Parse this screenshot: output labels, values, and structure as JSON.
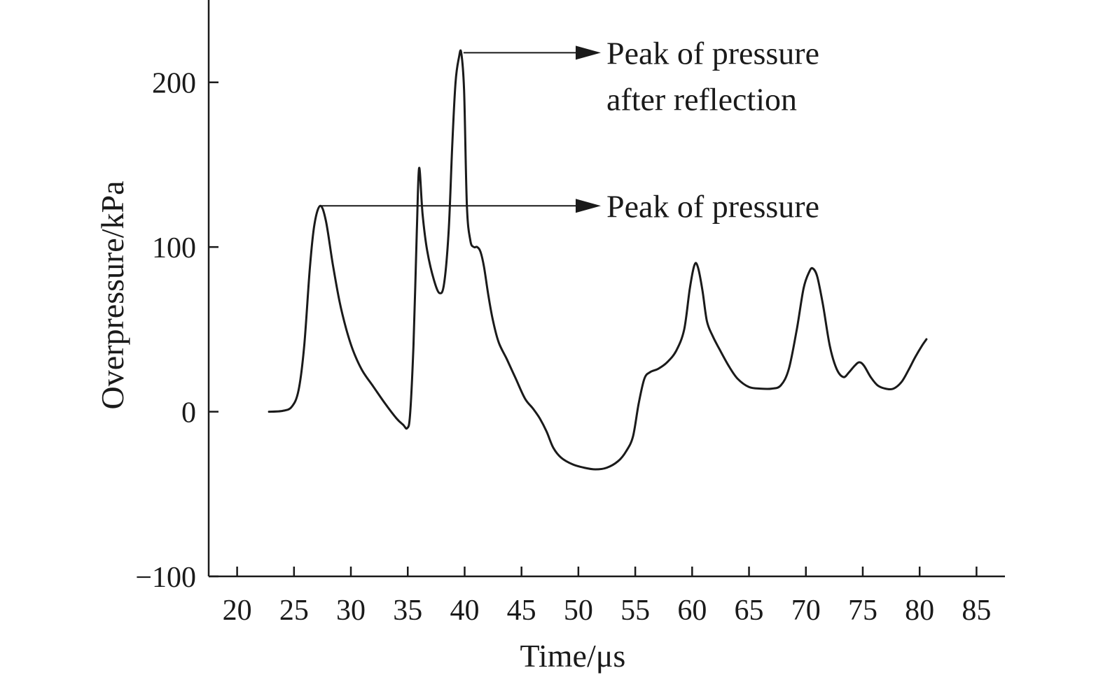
{
  "chart_data": {
    "type": "line",
    "title": "",
    "xlabel": "Time/μs",
    "ylabel": "Overpressure/kPa",
    "xlim": [
      17.5,
      87.5
    ],
    "ylim": [
      -100,
      250
    ],
    "x_ticks": [
      20,
      25,
      30,
      35,
      40,
      45,
      50,
      55,
      60,
      65,
      70,
      75,
      80,
      85
    ],
    "y_ticks": [
      -100,
      0,
      100,
      200
    ],
    "x_tick_labels": [
      "20",
      "25",
      "30",
      "35",
      "40",
      "45",
      "50",
      "55",
      "60",
      "65",
      "70",
      "75",
      "80",
      "85"
    ],
    "y_tick_labels": [
      "−100",
      "0",
      "100",
      "200"
    ],
    "grid": false,
    "series": [
      {
        "x": [
          22.8,
          24.0,
          24.8,
          25.4,
          25.9,
          26.4,
          26.8,
          27.3,
          27.8,
          28.4,
          29.0,
          29.6,
          30.2,
          31.0,
          32.0,
          33.0,
          34.0,
          34.6,
          34.95,
          35.2,
          35.5,
          35.8,
          36.0,
          36.3,
          36.7,
          37.3,
          37.8,
          38.2,
          38.6,
          38.9,
          39.2,
          39.5,
          39.7,
          39.95,
          40.2,
          40.5,
          40.8,
          41.1,
          41.4,
          41.7,
          42.1,
          42.5,
          43.0,
          43.7,
          44.5,
          45.3,
          46.0,
          46.6,
          47.2,
          47.8,
          48.5,
          49.5,
          50.5,
          51.5,
          52.5,
          53.5,
          54.2,
          54.8,
          55.3,
          55.8,
          56.3,
          57.0,
          57.8,
          58.6,
          59.3,
          59.8,
          60.2,
          60.5,
          60.9,
          61.3,
          61.8,
          62.4,
          63.2,
          64.0,
          65.0,
          66.0,
          67.0,
          67.8,
          68.5,
          69.2,
          69.8,
          70.3,
          70.6,
          71.0,
          71.5,
          72.1,
          72.7,
          73.3,
          73.8,
          74.3,
          74.7,
          75.1,
          75.7,
          76.3,
          77.0,
          77.7,
          78.4,
          79.0,
          79.6,
          80.2,
          80.6
        ],
        "y": [
          0,
          0.5,
          3,
          13,
          40,
          88,
          114,
          125,
          116,
          90,
          67,
          50,
          37,
          25,
          15,
          5,
          -4,
          -8,
          -10,
          -2,
          40,
          110,
          148,
          120,
          98,
          80,
          72,
          78,
          110,
          160,
          200,
          215,
          218,
          195,
          125,
          104,
          100,
          100,
          97,
          88,
          70,
          55,
          42,
          32,
          20,
          8,
          2,
          -4,
          -12,
          -22,
          -28,
          -32,
          -34,
          -35,
          -34,
          -30,
          -24,
          -15,
          5,
          20,
          24,
          26,
          30,
          37,
          50,
          75,
          89,
          88,
          74,
          55,
          46,
          38,
          28,
          20,
          15,
          14,
          14,
          16,
          26,
          50,
          75,
          85,
          87,
          82,
          65,
          40,
          26,
          21,
          24,
          28,
          30,
          28,
          21,
          16,
          14,
          14,
          18,
          25,
          33,
          40,
          44
        ]
      }
    ],
    "annotations": [
      {
        "lines": [
          "Peak of pressure",
          "after reflection"
        ],
        "x": 39.9,
        "y": 218
      },
      {
        "lines": [
          "Peak of pressure"
        ],
        "x": 27.3,
        "y": 125
      }
    ]
  }
}
